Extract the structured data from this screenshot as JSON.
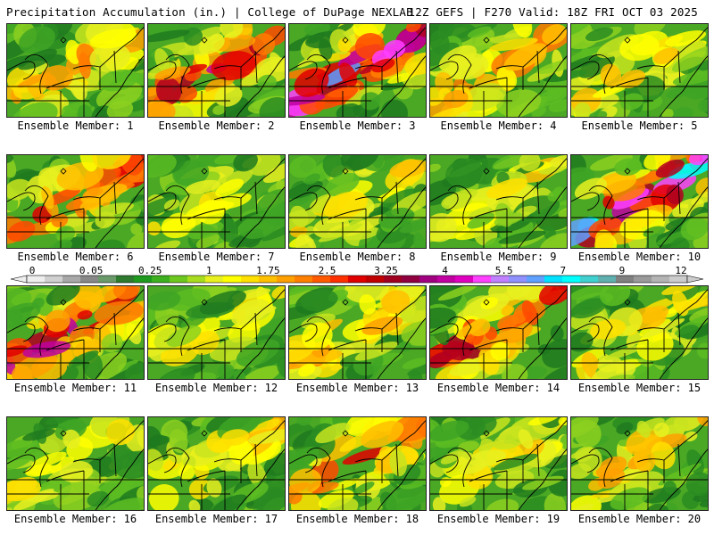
{
  "header": {
    "title_left": "Precipitation Accumulation (in.) | College of DuPage NEXLAB",
    "title_right": "12Z GEFS | F270 Valid: 18Z FRI OCT 03 2025"
  },
  "colorbar": {
    "labels": [
      "0",
      "0.05",
      "0.25",
      "1",
      "1.75",
      "2.5",
      "3.25",
      "4",
      "5.5",
      "7",
      "9",
      "12"
    ],
    "colors": [
      "#eeeeee",
      "#d0d0d0",
      "#a8a8a8",
      "#888888",
      "#6a9a6a",
      "#2e7a2e",
      "#1e9a1e",
      "#3cb01e",
      "#6cc81e",
      "#a8dc1e",
      "#e8f020",
      "#ffff00",
      "#ffe000",
      "#ffc000",
      "#ffa000",
      "#ff8000",
      "#ff5a00",
      "#ff3000",
      "#e00000",
      "#c00000",
      "#a00020",
      "#900040",
      "#a00080",
      "#c000a0",
      "#e000c0",
      "#ff40ff",
      "#c080ff",
      "#9090ff",
      "#60a0ff",
      "#00e0ff",
      "#00ffff",
      "#40d0d0",
      "#60b0b0",
      "#808080",
      "#9a9a9a",
      "#b4b4b4",
      "#cccccc"
    ]
  },
  "members": [
    {
      "label": "Ensemble Member: 1",
      "intensity": 0.45
    },
    {
      "label": "Ensemble Member: 2",
      "intensity": 0.7
    },
    {
      "label": "Ensemble Member: 3",
      "intensity": 0.85
    },
    {
      "label": "Ensemble Member: 4",
      "intensity": 0.5
    },
    {
      "label": "Ensemble Member: 5",
      "intensity": 0.35
    },
    {
      "label": "Ensemble Member: 6",
      "intensity": 0.65
    },
    {
      "label": "Ensemble Member: 7",
      "intensity": 0.25
    },
    {
      "label": "Ensemble Member: 8",
      "intensity": 0.3
    },
    {
      "label": "Ensemble Member: 9",
      "intensity": 0.3
    },
    {
      "label": "Ensemble Member: 10",
      "intensity": 0.9
    },
    {
      "label": "Ensemble Member: 11",
      "intensity": 0.75
    },
    {
      "label": "Ensemble Member: 12",
      "intensity": 0.3
    },
    {
      "label": "Ensemble Member: 13",
      "intensity": 0.45
    },
    {
      "label": "Ensemble Member: 14",
      "intensity": 0.65
    },
    {
      "label": "Ensemble Member: 15",
      "intensity": 0.35
    },
    {
      "label": "Ensemble Member: 16",
      "intensity": 0.25
    },
    {
      "label": "Ensemble Member: 17",
      "intensity": 0.4
    },
    {
      "label": "Ensemble Member: 18",
      "intensity": 0.6
    },
    {
      "label": "Ensemble Member: 19",
      "intensity": 0.3
    },
    {
      "label": "Ensemble Member: 20",
      "intensity": 0.4
    }
  ]
}
